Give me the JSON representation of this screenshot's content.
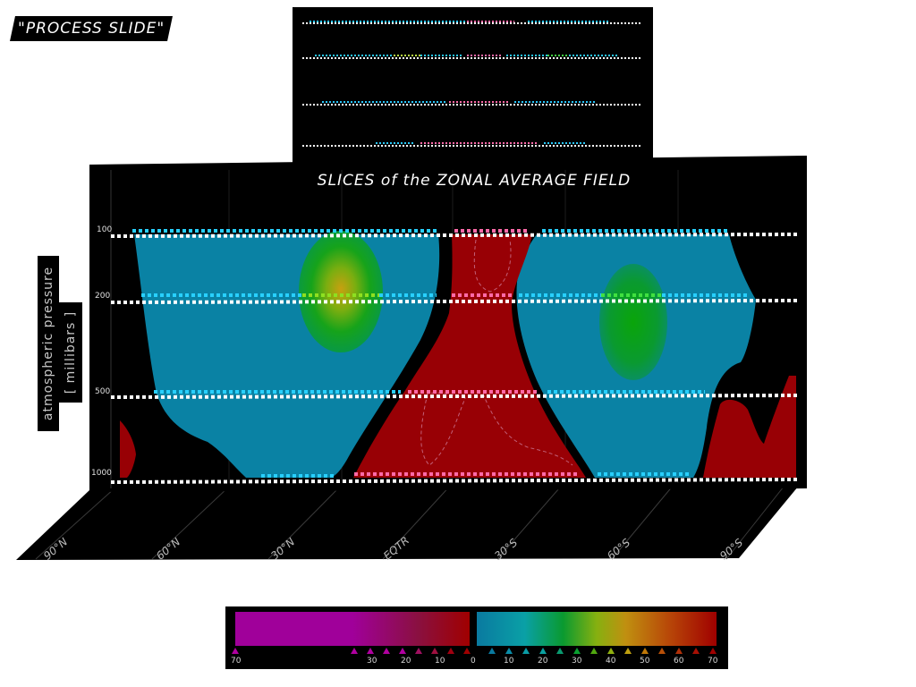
{
  "tag": "\"PROCESS SLIDE\"",
  "title": "SLICES of the ZONAL AVERAGE FIELD",
  "axis": {
    "line1": "atmospheric pressure",
    "line2": "[ millibars ]",
    "pressure_levels": [
      "100",
      "200",
      "500",
      "1000"
    ],
    "latitudes": [
      "90°N",
      "60°N",
      "30°N",
      "EQTR",
      "30°S",
      "60°S",
      "90°S"
    ]
  },
  "colorbar": {
    "left_ticks": [
      "70",
      "30",
      "20",
      "10",
      "0"
    ],
    "right_ticks": [
      "10",
      "20",
      "30",
      "40",
      "50",
      "60",
      "70"
    ]
  },
  "colors": {
    "teal": "#0a82a4",
    "red": "#980005",
    "green": "#15a015",
    "magenta": "#a0009a",
    "cyan_dash": "#28d0ff",
    "pink_dash": "#ff6aa8"
  }
}
